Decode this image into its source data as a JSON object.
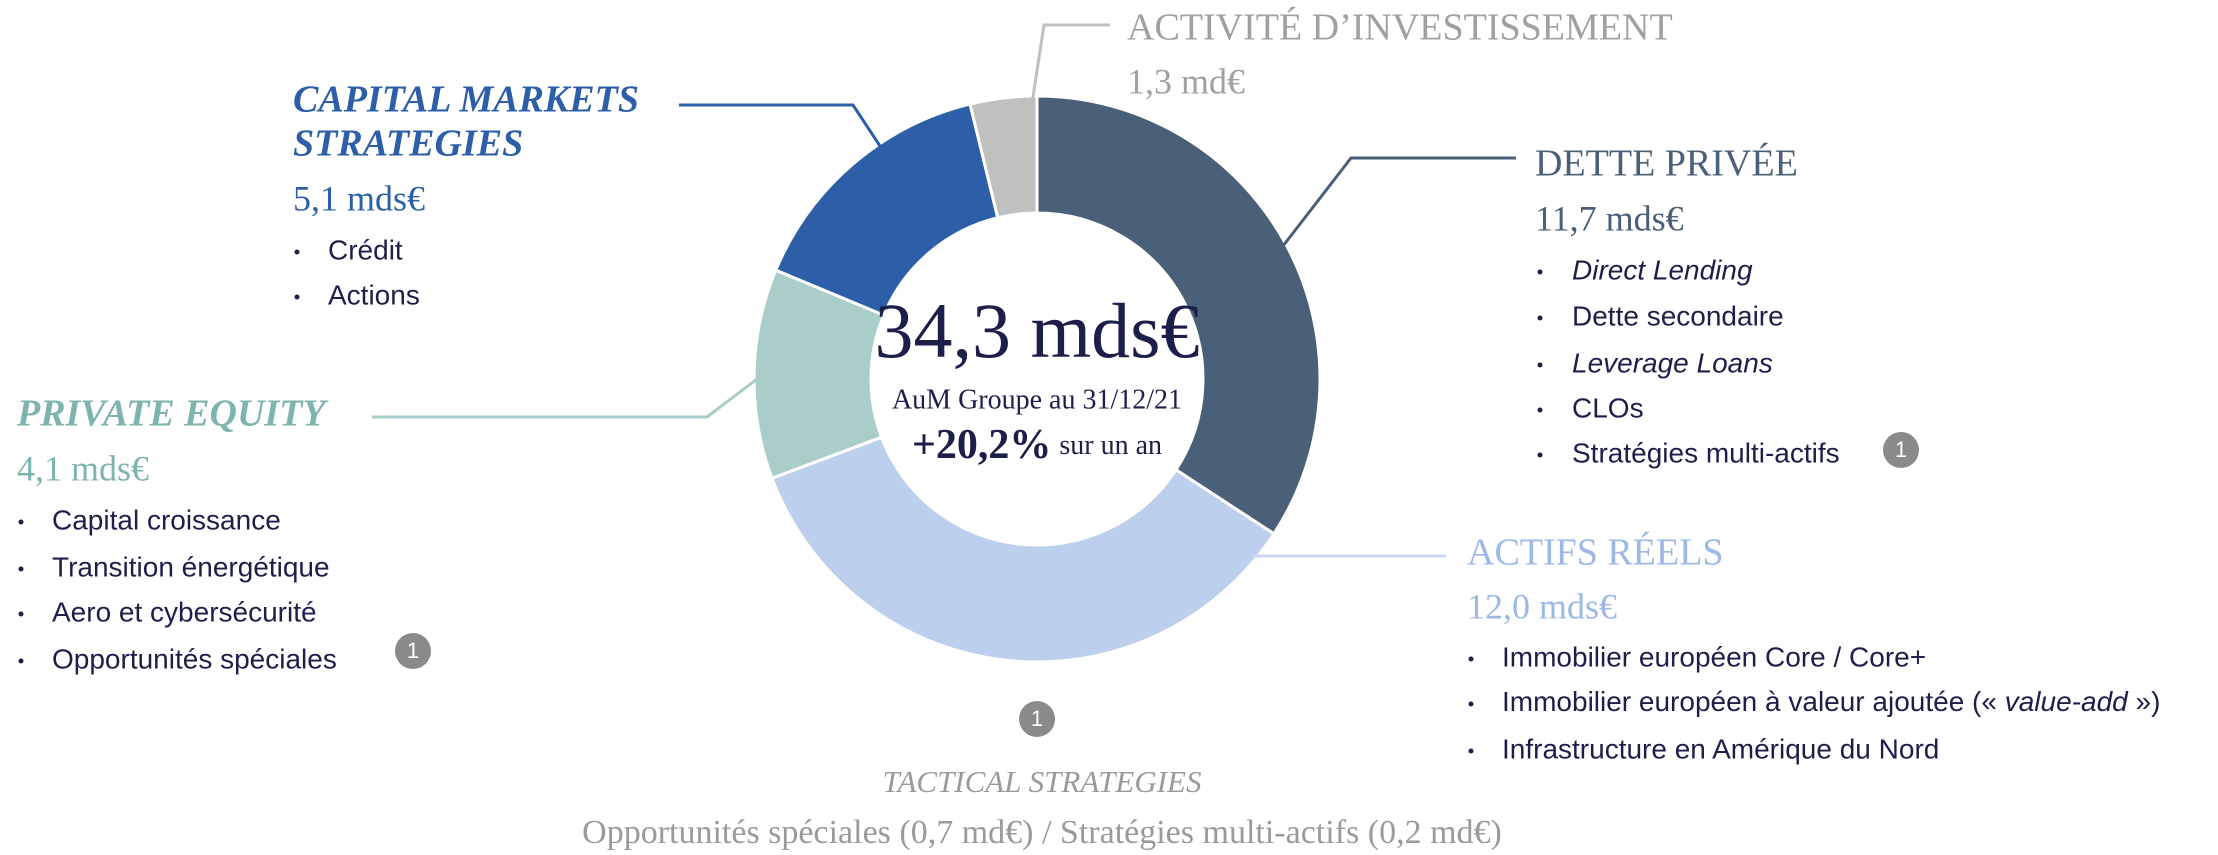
{
  "chart_data": {
    "type": "donut",
    "categories": [
      [
        "DETTE PRIVÉE"
      ],
      [
        "ACTIFS RÉELS"
      ],
      [
        "PRIVATE EQUITY"
      ],
      [
        "CAPITAL MARKETS",
        "STRATEGIES"
      ],
      [
        "ACTIVITÉ D’INVESTISSEMENT"
      ]
    ],
    "values": [
      11.7,
      12.0,
      4.1,
      5.1,
      1.3
    ],
    "value_labels": [
      "11,7 mds€",
      "12,0 mds€",
      "4,1 mds€",
      "5,1 mds€",
      "1,3 md€"
    ],
    "colors": [
      "#4a5f78",
      "#bcd0ee",
      "#a9cdc8",
      "#2c5fa8",
      "#c0c0c0"
    ],
    "details": [
      [
        "Direct Lending",
        "Dette secondaire",
        "Leverage Loans",
        "CLOs",
        "Stratégies multi-actifs"
      ],
      [
        "Immobilier européen Core / Core+",
        [
          "Immobilier européen à valeur ajoutée (« ",
          "value-add",
          " »)"
        ],
        "Infrastructure en Amérique du Nord"
      ],
      [
        "Capital croissance",
        "Transition énergétique",
        "Aero et cybersécurité",
        "Opportunités spéciales"
      ],
      [
        "Crédit",
        "Actions"
      ],
      []
    ],
    "center": {
      "total": "34,3 mds€",
      "caption": "AuM Groupe au 31/12/21",
      "growth": "+20,2%",
      "growth_caption": "sur un an"
    },
    "footnote_marker": "1",
    "note": {
      "title": "TACTICAL STRATEGIES",
      "text": "Opportunités spéciales (0,7 md€) / Stratégies multi-actifs (0,2 md€)"
    }
  }
}
